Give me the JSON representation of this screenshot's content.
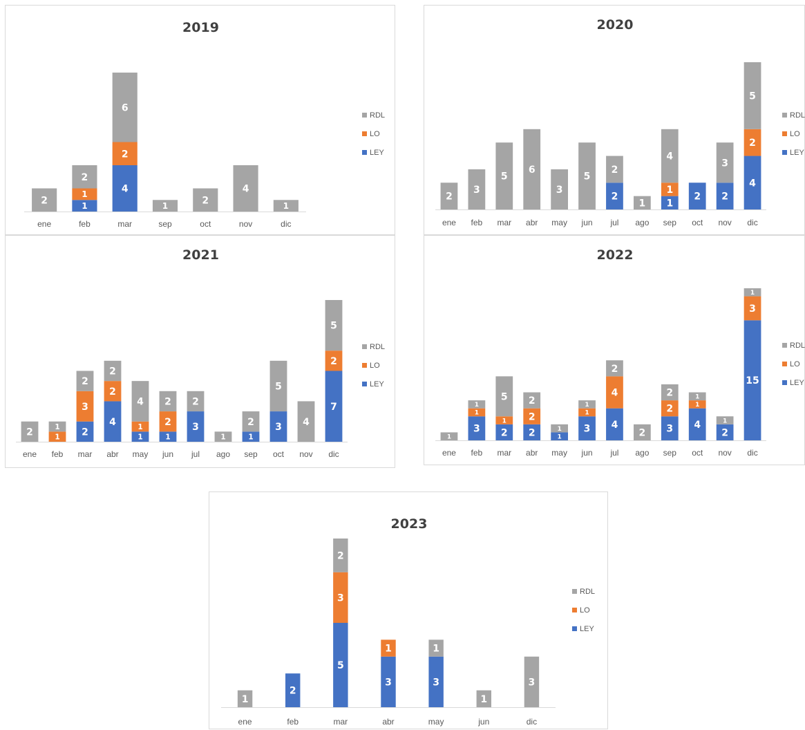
{
  "colors": {
    "LEY": "#4472c4",
    "LO": "#ed7d31",
    "RDL": "#a5a5a5"
  },
  "chart_data": [
    {
      "type": "bar",
      "stacked": true,
      "title": "2019",
      "categories": [
        "ene",
        "feb",
        "mar",
        "sep",
        "oct",
        "nov",
        "dic"
      ],
      "series": [
        {
          "name": "LEY",
          "values": [
            0,
            1,
            4,
            0,
            0,
            0,
            0
          ]
        },
        {
          "name": "LO",
          "values": [
            0,
            1,
            2,
            0,
            0,
            0,
            0
          ]
        },
        {
          "name": "RDL",
          "values": [
            2,
            2,
            6,
            1,
            2,
            4,
            1
          ]
        }
      ],
      "legend": [
        "RDL",
        "LO",
        "LEY"
      ],
      "legend_position": "right",
      "grid": false
    },
    {
      "type": "bar",
      "stacked": true,
      "title": "2020",
      "categories": [
        "ene",
        "feb",
        "mar",
        "abr",
        "may",
        "jun",
        "jul",
        "ago",
        "sep",
        "oct",
        "nov",
        "dic"
      ],
      "series": [
        {
          "name": "LEY",
          "values": [
            0,
            0,
            0,
            0,
            0,
            0,
            2,
            0,
            1,
            2,
            2,
            4
          ]
        },
        {
          "name": "LO",
          "values": [
            0,
            0,
            0,
            0,
            0,
            0,
            0,
            0,
            1,
            0,
            0,
            2
          ]
        },
        {
          "name": "RDL",
          "values": [
            2,
            3,
            5,
            6,
            3,
            5,
            2,
            1,
            4,
            0,
            3,
            5
          ]
        }
      ],
      "legend": [
        "RDL",
        "LO",
        "LEY"
      ],
      "legend_position": "right",
      "grid": false
    },
    {
      "type": "bar",
      "stacked": true,
      "title": "2021",
      "categories": [
        "ene",
        "feb",
        "mar",
        "abr",
        "may",
        "jun",
        "jul",
        "ago",
        "sep",
        "oct",
        "nov",
        "dic"
      ],
      "series": [
        {
          "name": "LEY",
          "values": [
            0,
            0,
            2,
            4,
            1,
            1,
            3,
            0,
            1,
            3,
            0,
            7
          ]
        },
        {
          "name": "LO",
          "values": [
            0,
            1,
            3,
            2,
            1,
            2,
            0,
            0,
            0,
            0,
            0,
            2
          ]
        },
        {
          "name": "RDL",
          "values": [
            2,
            1,
            2,
            2,
            4,
            2,
            2,
            1,
            2,
            5,
            4,
            5
          ]
        }
      ],
      "legend": [
        "RDL",
        "LO",
        "LEY"
      ],
      "legend_position": "right",
      "grid": false
    },
    {
      "type": "bar",
      "stacked": true,
      "title": "2022",
      "categories": [
        "ene",
        "feb",
        "mar",
        "abr",
        "may",
        "jun",
        "jul",
        "ago",
        "sep",
        "oct",
        "nov",
        "dic"
      ],
      "series": [
        {
          "name": "LEY",
          "values": [
            0,
            3,
            2,
            2,
            1,
            3,
            4,
            0,
            3,
            4,
            2,
            15
          ]
        },
        {
          "name": "LO",
          "values": [
            0,
            1,
            1,
            2,
            0,
            1,
            4,
            0,
            2,
            1,
            0,
            3
          ]
        },
        {
          "name": "RDL",
          "values": [
            1,
            1,
            5,
            2,
            1,
            1,
            2,
            2,
            2,
            1,
            1,
            1
          ]
        }
      ],
      "legend": [
        "RDL",
        "LO",
        "LEY"
      ],
      "legend_position": "right",
      "grid": false
    },
    {
      "type": "bar",
      "stacked": true,
      "title": "2023",
      "categories": [
        "ene",
        "feb",
        "mar",
        "abr",
        "may",
        "jun",
        "dic"
      ],
      "series": [
        {
          "name": "LEY",
          "values": [
            0,
            2,
            5,
            3,
            3,
            0,
            0
          ]
        },
        {
          "name": "LO",
          "values": [
            0,
            0,
            3,
            1,
            0,
            0,
            0
          ]
        },
        {
          "name": "RDL",
          "values": [
            1,
            0,
            2,
            0,
            1,
            1,
            3
          ]
        }
      ],
      "legend": [
        "RDL",
        "LO",
        "LEY"
      ],
      "legend_position": "right",
      "grid": false
    }
  ]
}
